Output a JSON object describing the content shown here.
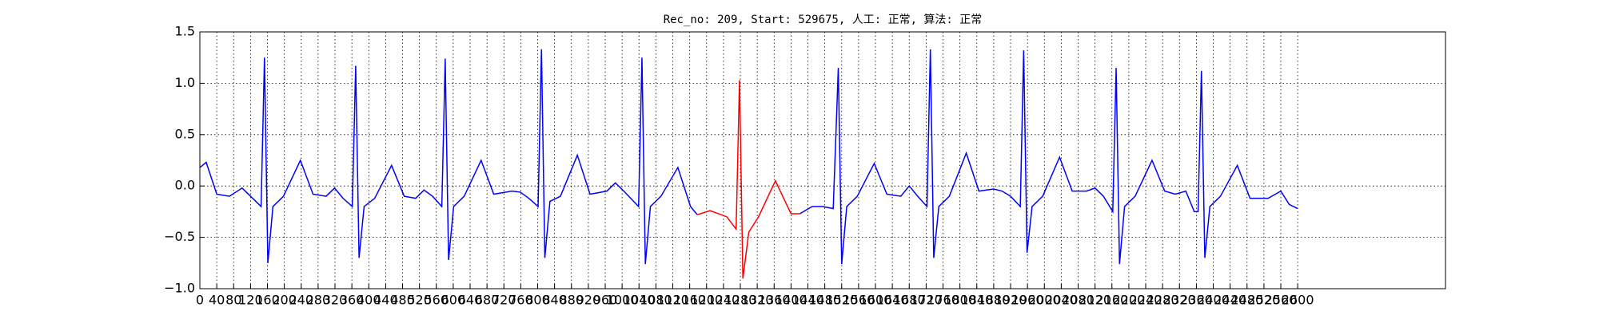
{
  "chart_data": {
    "type": "line",
    "title": "Rec_no: 209, Start: 529675, 人工: 正常, 算法: 正常",
    "series": [
      {
        "color": "#0000ff",
        "x": [
          0,
          15,
          40,
          70,
          100,
          120,
          145,
          153,
          161,
          173,
          198,
          238,
          268,
          299,
          319,
          339,
          361,
          369,
          377,
          389,
          414,
          454,
          484,
          511,
          531,
          551,
          573,
          581,
          589,
          601,
          626,
          666,
          696,
          739,
          759,
          779,
          801,
          809,
          817,
          829,
          854,
          894,
          924,
          964,
          984,
          1004,
          1039,
          1047,
          1055,
          1067,
          1092,
          1132,
          1162,
          1178,
          1300,
          1421,
          1450,
          1475,
          1500,
          1512,
          1520,
          1532,
          1557,
          1597,
          1627,
          1660,
          1680,
          1700,
          1722,
          1730,
          1738,
          1750,
          1775,
          1815,
          1845,
          1880,
          1900,
          1920,
          1943,
          1951,
          1959,
          1971,
          1996,
          2036,
          2066,
          2100,
          2120,
          2140,
          2162,
          2170,
          2178,
          2190,
          2215,
          2255,
          2285,
          2310,
          2335,
          2355,
          2364,
          2372,
          2380,
          2392,
          2417,
          2457,
          2487,
          2530,
          2560,
          2580,
          2600
        ],
        "values": [
          0.18,
          0.23,
          -0.08,
          -0.1,
          -0.02,
          -0.1,
          -0.2,
          1.25,
          -0.75,
          -0.2,
          -0.1,
          0.25,
          -0.08,
          -0.1,
          -0.02,
          -0.12,
          -0.2,
          1.17,
          -0.7,
          -0.2,
          -0.12,
          0.2,
          -0.1,
          -0.12,
          -0.04,
          -0.1,
          -0.2,
          1.24,
          -0.72,
          -0.2,
          -0.1,
          0.25,
          -0.08,
          -0.05,
          -0.06,
          -0.12,
          -0.2,
          1.33,
          -0.7,
          -0.15,
          -0.1,
          0.3,
          -0.08,
          -0.05,
          0.03,
          -0.05,
          -0.2,
          1.25,
          -0.76,
          -0.2,
          -0.1,
          0.18,
          -0.2,
          -0.28,
          null,
          -0.27,
          -0.2,
          -0.2,
          -0.22,
          1.15,
          -0.76,
          -0.2,
          -0.1,
          0.22,
          -0.08,
          -0.1,
          0.0,
          -0.1,
          -0.2,
          1.33,
          -0.7,
          -0.2,
          -0.1,
          0.32,
          -0.05,
          -0.03,
          -0.05,
          -0.1,
          -0.2,
          1.32,
          -0.65,
          -0.2,
          -0.1,
          0.28,
          -0.05,
          -0.05,
          -0.02,
          -0.1,
          -0.25,
          1.15,
          -0.76,
          -0.2,
          -0.1,
          0.25,
          -0.05,
          -0.08,
          -0.05,
          -0.25,
          -0.25,
          1.12,
          -0.7,
          -0.2,
          -0.1,
          0.2,
          -0.12,
          -0.12,
          -0.05,
          -0.18,
          -0.22
        ]
      },
      {
        "color": "#ff0000",
        "x": [
          1178,
          1208,
          1248,
          1270,
          1278,
          1286,
          1300,
          1323,
          1363,
          1400,
          1421
        ],
        "values": [
          -0.28,
          -0.24,
          -0.3,
          -0.42,
          1.03,
          -0.9,
          -0.45,
          -0.3,
          0.05,
          -0.27,
          -0.27
        ]
      }
    ],
    "xlim": [
      0,
      2950
    ],
    "xticks": [
      0,
      40,
      80,
      120,
      160,
      200,
      240,
      280,
      320,
      360,
      400,
      440,
      480,
      520,
      560,
      600,
      640,
      680,
      720,
      760,
      800,
      840,
      880,
      920,
      960,
      1000,
      1040,
      1080,
      1120,
      1160,
      1200,
      1240,
      1280,
      1320,
      1360,
      1400,
      1440,
      1480,
      1520,
      1560,
      1600,
      1640,
      1680,
      1720,
      1760,
      1800,
      1840,
      1880,
      1920,
      1960,
      2000,
      2040,
      2080,
      2120,
      2160,
      2200,
      2240,
      2280,
      2320,
      2360,
      2400,
      2440,
      2480,
      2520,
      2560,
      2600
    ],
    "ylim": [
      -1.0,
      1.5
    ],
    "yticks": [
      {
        "value": -1.0,
        "label": "−1.0"
      },
      {
        "value": -0.5,
        "label": "−0.5"
      },
      {
        "value": 0,
        "label": "0.0"
      },
      0.5,
      {
        "value": 1,
        "label": "1.0"
      },
      1.5
    ],
    "grid": true
  }
}
